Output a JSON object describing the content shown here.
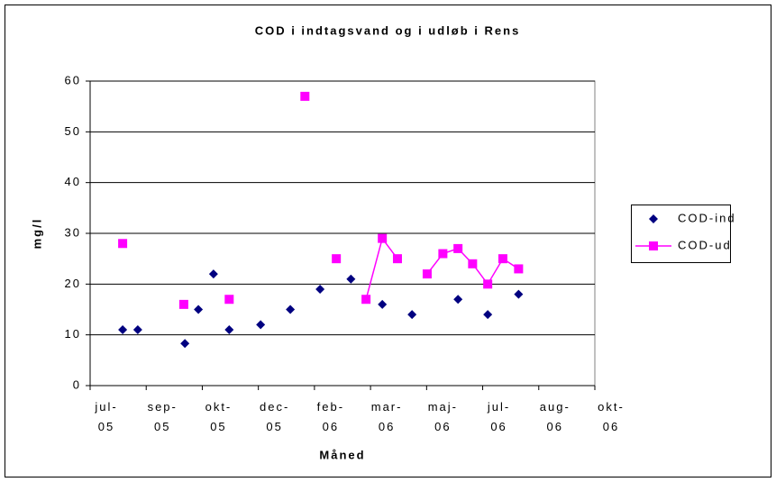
{
  "chart_data": {
    "type": "scatter",
    "title": "COD i indtagsvand og i udløb i Rens",
    "x_label": "Måned",
    "y_label": "mg/l",
    "xlim": [
      0,
      9
    ],
    "xticks": [
      {
        "value": 0,
        "label": "jul-05"
      },
      {
        "value": 1,
        "label": "sep-05"
      },
      {
        "value": 2,
        "label": "okt-05"
      },
      {
        "value": 3,
        "label": "dec-05"
      },
      {
        "value": 4,
        "label": "feb-06"
      },
      {
        "value": 5,
        "label": "mar-06"
      },
      {
        "value": 6,
        "label": "maj-06"
      },
      {
        "value": 7,
        "label": "jul-06"
      },
      {
        "value": 8,
        "label": "aug-06"
      },
      {
        "value": 9,
        "label": "okt-06"
      }
    ],
    "ylim": [
      0,
      60
    ],
    "yticks": [
      0,
      10,
      20,
      30,
      40,
      50,
      60
    ],
    "grid": true,
    "legend": "right",
    "series": [
      {
        "name": "COD-ind",
        "color": "#000080",
        "marker": "diamond",
        "line": false,
        "x": [
          0.58,
          0.85,
          1.69,
          1.93,
          2.2,
          2.48,
          3.04,
          3.57,
          4.1,
          4.65,
          5.21,
          5.74,
          6.56,
          7.09,
          7.64
        ],
        "values": [
          11,
          11,
          8.3,
          15,
          22,
          11,
          12,
          15,
          19,
          21,
          16,
          14,
          17,
          14,
          18
        ]
      },
      {
        "name": "COD-ud",
        "color": "#ff00ff",
        "marker": "square",
        "line": true,
        "x": [
          0.58,
          null,
          1.67,
          null,
          2.48,
          null,
          3.83,
          null,
          4.39,
          null,
          4.92,
          5.21,
          5.48,
          null,
          6.01,
          6.29,
          6.56,
          6.82,
          7.09,
          7.36,
          7.64
        ],
        "values": [
          28,
          null,
          16,
          null,
          17,
          null,
          57,
          null,
          25,
          null,
          17,
          29,
          25,
          null,
          22,
          26,
          27,
          24,
          20,
          25,
          23
        ]
      }
    ]
  }
}
